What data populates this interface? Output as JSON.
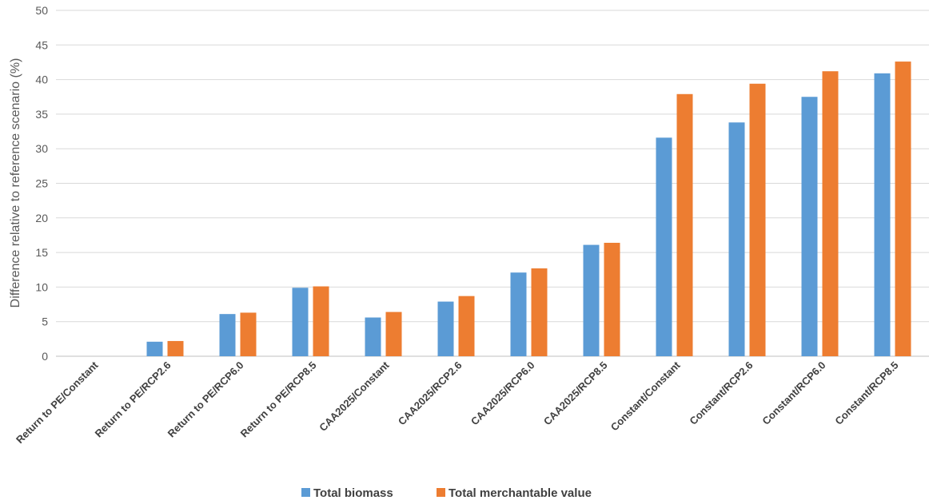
{
  "chart_data": {
    "type": "bar",
    "title": "",
    "xlabel": "",
    "ylabel": "Difference relative to reference scenario (%)",
    "ylim": [
      0,
      50
    ],
    "yticks": [
      0,
      5,
      10,
      15,
      20,
      25,
      30,
      35,
      40,
      45,
      50
    ],
    "grid": true,
    "legend_position": "bottom",
    "categories": [
      "Return to PE/Constant",
      "Return to PE/RCP2.6",
      "Return to PE/RCP6.0",
      "Return to PE/RCP8.5",
      "CAA2025/Constant",
      "CAA2025/RCP2.6",
      "CAA2025/RCP6.0",
      "CAA2025/RCP8.5",
      "Constant/Constant",
      "Constant/RCP2.6",
      "Constant/RCP6.0",
      "Constant/RCP8.5"
    ],
    "series": [
      {
        "name": "Total biomass",
        "color": "#5b9bd5",
        "values": [
          0,
          2.1,
          6.1,
          9.9,
          5.6,
          7.9,
          12.1,
          16.1,
          31.6,
          33.8,
          37.5,
          40.9
        ]
      },
      {
        "name": "Total merchantable value",
        "color": "#ed7d31",
        "values": [
          0,
          2.2,
          6.3,
          10.1,
          6.4,
          8.7,
          12.7,
          16.4,
          37.9,
          39.4,
          41.2,
          42.6
        ]
      }
    ]
  }
}
